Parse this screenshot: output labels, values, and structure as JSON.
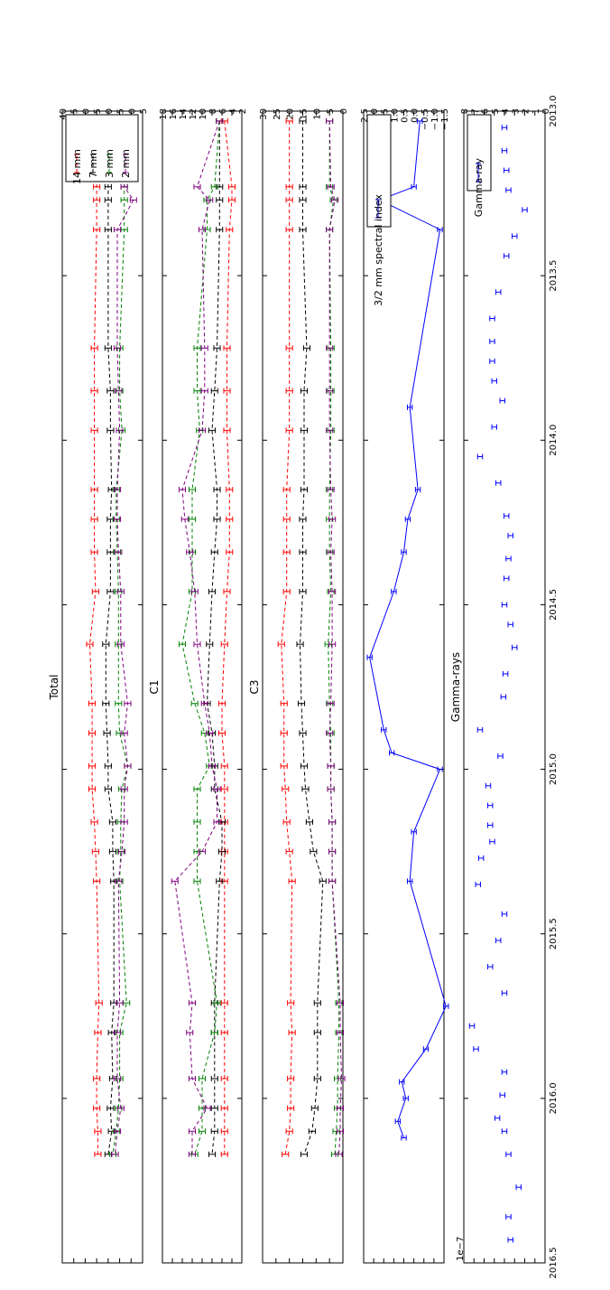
{
  "chart_data": [
    {
      "type": "line",
      "title": "Total",
      "xlim": [
        2013.0,
        2016.5
      ],
      "ylim": [
        5,
        40
      ],
      "yticks": [
        5,
        10,
        15,
        20,
        25,
        30,
        35,
        40
      ],
      "x": [
        2013.03,
        2013.23,
        2013.27,
        2013.36,
        2013.72,
        2013.85,
        2013.97,
        2014.15,
        2014.24,
        2014.34,
        2014.46,
        2014.62,
        2014.8,
        2014.89,
        2014.99,
        2015.06,
        2015.16,
        2015.25,
        2015.34,
        2015.71,
        2015.8,
        2015.94,
        2016.03,
        2016.1,
        2016.17
      ],
      "series": [
        {
          "name": "14 mm",
          "color": "#ff0000",
          "values": [
            25,
            25,
            25,
            25,
            26,
            26,
            26,
            26,
            26,
            26,
            25.5,
            28,
            27,
            27,
            27,
            27,
            26,
            25.5,
            25,
            24,
            24.5,
            25,
            25,
            24.5,
            24.5
          ]
        },
        {
          "name": "7 mm",
          "color": "#000000",
          "values": [
            20,
            20,
            20,
            20,
            20,
            19,
            19,
            18.5,
            19,
            19,
            19,
            21,
            21,
            20.5,
            20,
            20,
            18,
            18,
            17.5,
            17.5,
            18.5,
            18,
            19,
            18.5,
            20
          ]
        },
        {
          "name": "3 mm",
          "color": "#008000",
          "values": [
            13,
            13,
            13,
            13,
            15,
            15,
            14,
            16.5,
            16.5,
            16,
            15.5,
            15.5,
            15.5,
            15,
            11.5,
            14,
            14.5,
            14.5,
            15,
            12,
            15,
            15,
            15.5,
            16.5,
            18
          ]
        },
        {
          "name": "2 mm",
          "color": "#800080",
          "values": [
            12,
            13,
            9,
            16,
            16,
            15.5,
            15,
            16,
            16,
            15.5,
            14.5,
            14.5,
            11.5,
            13,
            11.5,
            13,
            13,
            14,
            15.5,
            15,
            16,
            16,
            14.5,
            16,
            17
          ]
        }
      ],
      "legend": "top-right"
    },
    {
      "type": "line",
      "title": "C1",
      "xlim": [
        2013.0,
        2016.5
      ],
      "ylim": [
        2,
        18
      ],
      "yticks": [
        2,
        4,
        6,
        8,
        10,
        12,
        14,
        16,
        18
      ],
      "x": [
        2013.03,
        2013.23,
        2013.27,
        2013.36,
        2013.72,
        2013.85,
        2013.97,
        2014.15,
        2014.24,
        2014.34,
        2014.46,
        2014.62,
        2014.8,
        2014.89,
        2014.99,
        2015.06,
        2015.16,
        2015.25,
        2015.34,
        2015.71,
        2015.8,
        2015.94,
        2016.03,
        2016.1,
        2016.17
      ],
      "series": [
        {
          "name": "14 mm",
          "color": "#ff0000",
          "values": [
            5.5,
            4,
            4,
            4.5,
            5,
            5,
            5,
            4.5,
            4.5,
            4.5,
            5,
            5.5,
            6,
            6,
            5.5,
            5.5,
            5.5,
            5.5,
            5.5,
            5.5,
            5.5,
            5.5,
            5.5,
            5.5,
            5.5
          ]
        },
        {
          "name": "7 mm",
          "color": "#000000",
          "values": [
            6.5,
            6.5,
            6.5,
            6.5,
            7,
            7.5,
            8,
            7,
            7,
            7.5,
            8,
            8.5,
            9,
            8,
            7.5,
            7.5,
            6,
            6,
            6.5,
            7.5,
            7.5,
            7.5,
            7.5,
            7.5,
            8
          ]
        },
        {
          "name": "3 mm",
          "color": "#008000",
          "values": [
            6.5,
            7.5,
            9,
            9,
            11,
            11,
            10.5,
            12,
            12,
            12,
            12,
            14,
            11.5,
            9.5,
            8.5,
            11,
            11,
            11,
            11,
            7,
            7.5,
            10,
            10,
            10,
            11.5
          ]
        },
        {
          "name": "2 mm",
          "color": "#800080",
          "values": [
            6.5,
            11,
            8.5,
            10,
            9.5,
            9.5,
            10,
            14,
            13.5,
            12.5,
            11.5,
            11,
            9.5,
            8.5,
            8,
            7,
            7,
            10,
            15.5,
            12,
            12.5,
            12,
            9,
            12,
            12
          ]
        }
      ]
    },
    {
      "type": "line",
      "title": "C3",
      "xlim": [
        2013.0,
        2016.5
      ],
      "ylim": [
        0,
        30
      ],
      "yticks": [
        0,
        5,
        10,
        15,
        20,
        25,
        30
      ],
      "x": [
        2013.03,
        2013.23,
        2013.27,
        2013.36,
        2013.72,
        2013.85,
        2013.97,
        2014.15,
        2014.24,
        2014.34,
        2014.46,
        2014.62,
        2014.8,
        2014.89,
        2014.99,
        2015.06,
        2015.16,
        2015.25,
        2015.34,
        2015.71,
        2015.8,
        2015.94,
        2016.03,
        2016.1,
        2016.17
      ],
      "series": [
        {
          "name": "14 mm",
          "color": "#ff0000",
          "values": [
            20,
            20,
            20,
            20,
            20,
            20,
            20,
            21,
            21,
            21,
            21,
            23,
            22,
            22,
            22,
            21.5,
            21,
            20,
            19,
            19.5,
            19,
            19.5,
            19.5,
            20,
            21.5
          ]
        },
        {
          "name": "7 mm",
          "color": "#000000",
          "values": [
            15,
            15,
            15,
            15,
            13.5,
            14.5,
            14.5,
            14.5,
            15,
            15,
            15,
            16,
            15.5,
            15,
            14.5,
            14,
            12.5,
            11,
            7.5,
            9.5,
            9.5,
            9.5,
            10.5,
            11.5,
            14.5
          ]
        },
        {
          "name": "3 mm",
          "color": "#008000",
          "values": [
            5,
            5,
            3.5,
            5,
            4.5,
            4.5,
            4.5,
            5,
            5,
            5,
            4.5,
            5.5,
            5,
            4.5,
            4.5,
            4.5,
            4,
            4,
            4,
            1.5,
            1.5,
            2,
            2,
            2.5,
            3
          ]
        },
        {
          "name": "2 mm",
          "color": "#800080",
          "values": [
            5,
            4.5,
            3,
            5,
            5,
            5,
            5,
            4.5,
            4,
            4.5,
            4,
            4,
            4.5,
            5,
            4.5,
            4.5,
            4,
            4,
            4,
            1,
            1,
            0.5,
            1,
            1,
            1.5
          ]
        }
      ]
    },
    {
      "type": "line",
      "xlim": [
        2013.0,
        2016.5
      ],
      "ylim": [
        -1.5,
        2.5
      ],
      "yticks": [
        -1.5,
        -1.0,
        -0.5,
        0.0,
        0.5,
        1.0,
        1.5,
        2.0,
        2.5
      ],
      "ytick_labels": [
        "−1.5",
        "−1.0",
        "−0.5",
        "0.0",
        "0.5",
        "1.0",
        "1.5",
        "2.0",
        "2.5"
      ],
      "x": [
        2013.03,
        2013.23,
        2013.27,
        2013.36,
        2013.9,
        2014.15,
        2014.24,
        2014.34,
        2014.46,
        2014.66,
        2014.88,
        2014.95,
        2015.0,
        2015.19,
        2015.34,
        2015.72,
        2015.85,
        2015.95,
        2016.0,
        2016.07,
        2016.12
      ],
      "series": [
        {
          "name": "3/2 mm spectral index",
          "color": "#0000ff",
          "values": [
            -0.3,
            0.0,
            1.7,
            -1.3,
            0.2,
            -0.2,
            0.3,
            0.5,
            1.0,
            2.2,
            1.5,
            1.1,
            -1.3,
            0.0,
            0.2,
            -1.6,
            -0.6,
            0.6,
            0.4,
            0.8,
            0.5
          ]
        }
      ],
      "legend": "top-right"
    },
    {
      "type": "scatter",
      "title": "Gamma-rays",
      "xlim": [
        2013.0,
        2016.5
      ],
      "xticks": [
        2013.0,
        2013.5,
        2014.0,
        2014.5,
        2015.0,
        2015.5,
        2016.0,
        2016.5
      ],
      "xtick_labels": [
        "2013.0",
        "2013.5",
        "2014.0",
        "2014.5",
        "2015.0",
        "2015.5",
        "2016.0",
        "2016.5"
      ],
      "ylim": [
        0,
        8
      ],
      "yticks": [
        0,
        1,
        2,
        3,
        4,
        5,
        6,
        7,
        8
      ],
      "y_multiplier": "1e−7",
      "x": [
        2013.05,
        2013.12,
        2013.18,
        2013.24,
        2013.3,
        2013.38,
        2013.44,
        2013.55,
        2013.63,
        2013.7,
        2013.76,
        2013.82,
        2013.88,
        2013.96,
        2014.05,
        2014.13,
        2014.23,
        2014.29,
        2014.36,
        2014.42,
        2014.5,
        2014.56,
        2014.63,
        2014.71,
        2014.78,
        2014.88,
        2014.96,
        2015.05,
        2015.11,
        2015.17,
        2015.22,
        2015.27,
        2015.35,
        2015.44,
        2015.52,
        2015.6,
        2015.68,
        2015.78,
        2015.85,
        2015.92,
        2015.99,
        2016.06,
        2016.1,
        2016.17,
        2016.27,
        2016.36,
        2016.43
      ],
      "series": [
        {
          "name": "Gamma-ray",
          "color": "#0000ff",
          "values": [
            4.0,
            4.0,
            3.8,
            3.6,
            2.0,
            3.0,
            3.8,
            4.6,
            5.2,
            5.2,
            5.2,
            5.0,
            4.2,
            5.0,
            6.4,
            4.6,
            3.8,
            3.4,
            3.6,
            3.8,
            4.0,
            3.4,
            3.0,
            3.9,
            4.1,
            6.4,
            4.4,
            5.6,
            5.4,
            5.4,
            5.2,
            6.3,
            6.6,
            4.0,
            4.6,
            5.4,
            4.0,
            7.2,
            6.8,
            4.0,
            4.2,
            4.7,
            4.0,
            3.6,
            2.6,
            3.6,
            3.4
          ]
        }
      ],
      "legend": "top-right"
    }
  ]
}
